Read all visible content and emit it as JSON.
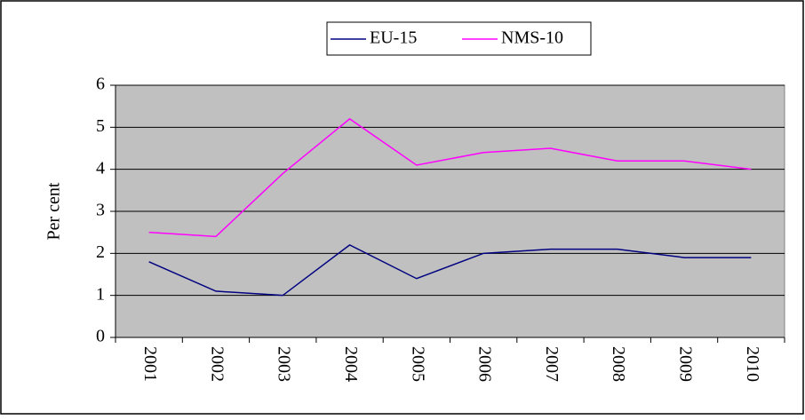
{
  "chart_data": {
    "type": "line",
    "y_label": "Per cent",
    "categories": [
      "2001",
      "2002",
      "2003",
      "2004",
      "2005",
      "2006",
      "2007",
      "2008",
      "2009",
      "2010"
    ],
    "series": [
      {
        "name": "EU-15",
        "color": "#000080",
        "values": [
          1.8,
          1.1,
          1.0,
          2.2,
          1.4,
          2.0,
          2.1,
          2.1,
          1.9,
          1.9
        ]
      },
      {
        "name": "NMS-10",
        "color": "#ff00ff",
        "values": [
          2.5,
          2.4,
          3.9,
          5.2,
          4.1,
          4.4,
          4.5,
          4.2,
          4.2,
          4.0
        ]
      }
    ],
    "ylim": [
      0,
      6
    ],
    "yticks": [
      0,
      1,
      2,
      3,
      4,
      5,
      6
    ],
    "grid": true,
    "legend": "top"
  }
}
